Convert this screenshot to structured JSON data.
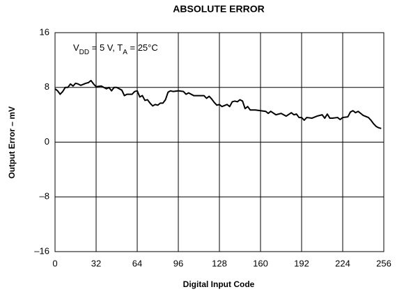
{
  "chart_data": {
    "type": "line",
    "title": "ABSOLUTE ERROR",
    "xlabel": "Digital Input Code",
    "ylabel": "Output Error – mV",
    "annotation": [
      "V",
      "DD",
      " = 5 V, T",
      "A",
      " = 25°C"
    ],
    "xlim": [
      0,
      256
    ],
    "ylim": [
      -16,
      16
    ],
    "xticks": [
      0,
      32,
      64,
      96,
      128,
      160,
      192,
      224,
      256
    ],
    "yticks": [
      {
        "value": -16,
        "label": "–16"
      },
      {
        "value": -8,
        "label": "–8"
      },
      0,
      8,
      16
    ],
    "grid": true,
    "x": [
      0,
      2,
      4,
      6,
      8,
      10,
      12,
      14,
      16,
      18,
      20,
      24,
      26,
      28,
      30,
      32,
      36,
      40,
      42,
      44,
      46,
      48,
      52,
      54,
      56,
      60,
      62,
      64,
      66,
      68,
      70,
      72,
      74,
      76,
      78,
      80,
      82,
      84,
      86,
      88,
      90,
      92,
      96,
      100,
      102,
      104,
      108,
      112,
      116,
      118,
      120,
      122,
      124,
      126,
      128,
      130,
      134,
      136,
      138,
      140,
      142,
      144,
      146,
      148,
      150,
      152,
      156,
      160,
      164,
      166,
      168,
      172,
      176,
      180,
      184,
      186,
      188,
      190,
      192,
      194,
      196,
      200,
      204,
      208,
      210,
      212,
      214,
      216,
      220,
      222,
      224,
      228,
      230,
      232,
      234,
      236,
      238,
      240,
      244,
      246,
      248,
      250,
      252,
      254
    ],
    "series": [
      {
        "name": "Output Error",
        "color": "#000000",
        "values": [
          7.8,
          7.5,
          7.0,
          7.4,
          8.0,
          8.0,
          8.5,
          8.2,
          8.6,
          8.5,
          8.3,
          8.6,
          8.7,
          9.0,
          8.5,
          8.1,
          8.2,
          7.8,
          8.0,
          7.5,
          8.0,
          8.0,
          7.6,
          6.8,
          7.0,
          7.0,
          7.4,
          7.5,
          6.6,
          6.8,
          6.1,
          6.2,
          5.7,
          5.3,
          5.5,
          5.4,
          5.7,
          5.7,
          6.2,
          7.3,
          7.5,
          7.4,
          7.5,
          7.4,
          7.0,
          7.2,
          6.8,
          6.8,
          6.8,
          6.4,
          6.7,
          6.3,
          5.8,
          5.4,
          5.5,
          5.2,
          5.5,
          5.2,
          5.9,
          6.0,
          5.9,
          6.2,
          6.0,
          4.9,
          5.2,
          4.7,
          4.7,
          4.6,
          4.5,
          4.2,
          4.5,
          4.0,
          4.2,
          3.8,
          4.3,
          4.0,
          4.1,
          3.6,
          3.6,
          3.2,
          3.6,
          3.5,
          3.8,
          4.0,
          3.5,
          4.1,
          3.5,
          3.5,
          3.6,
          3.3,
          3.6,
          3.7,
          4.4,
          4.6,
          4.3,
          4.5,
          4.2,
          3.9,
          3.6,
          3.2,
          2.7,
          2.3,
          2.1,
          2.0
        ]
      }
    ]
  }
}
